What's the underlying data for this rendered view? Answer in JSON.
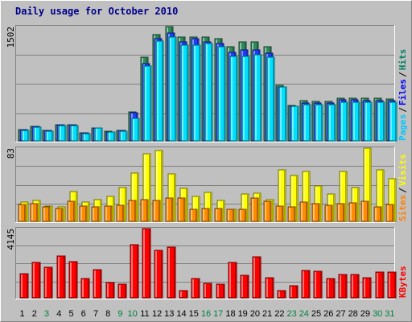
{
  "chart_data": [
    {
      "type": "bar",
      "title": "Daily usage for October 2010",
      "categories": [
        "1",
        "2",
        "3",
        "4",
        "5",
        "6",
        "7",
        "8",
        "9",
        "10",
        "11",
        "12",
        "13",
        "14",
        "15",
        "16",
        "17",
        "18",
        "19",
        "20",
        "21",
        "22",
        "23",
        "24",
        "25",
        "26",
        "27",
        "28",
        "29",
        "30",
        "31"
      ],
      "weekend_days": [
        "3",
        "9",
        "10",
        "16",
        "17",
        "23",
        "24",
        "30",
        "31"
      ],
      "ylabel_top": "1502",
      "ylim": [
        0,
        1502
      ],
      "legend": [
        "Pages",
        "Files",
        "Hits"
      ],
      "series": [
        {
          "name": "Hits",
          "color": "#2e8b57",
          "values": [
            148,
            190,
            140,
            210,
            210,
            110,
            170,
            125,
            140,
            380,
            1100,
            1400,
            1502,
            1365,
            1365,
            1365,
            1340,
            1240,
            1300,
            1300,
            1240,
            725,
            470,
            525,
            515,
            520,
            560,
            560,
            560,
            560,
            555
          ]
        },
        {
          "name": "Files",
          "color": "#1e3cff",
          "values": [
            145,
            190,
            135,
            210,
            210,
            110,
            170,
            120,
            135,
            370,
            1020,
            1340,
            1420,
            1300,
            1340,
            1300,
            1280,
            1160,
            1190,
            1190,
            1150,
            710,
            455,
            500,
            500,
            500,
            535,
            535,
            530,
            530,
            530
          ]
        },
        {
          "name": "Pages",
          "color": "#00e0ff",
          "values": [
            140,
            180,
            130,
            200,
            200,
            100,
            165,
            115,
            130,
            300,
            980,
            1310,
            1360,
            1260,
            1260,
            1280,
            1240,
            1110,
            1110,
            1130,
            1100,
            710,
            450,
            480,
            480,
            480,
            505,
            510,
            510,
            510,
            505
          ]
        }
      ]
    },
    {
      "type": "bar",
      "categories": [
        "1",
        "2",
        "3",
        "4",
        "5",
        "6",
        "7",
        "8",
        "9",
        "10",
        "11",
        "12",
        "13",
        "14",
        "15",
        "16",
        "17",
        "18",
        "19",
        "20",
        "21",
        "22",
        "23",
        "24",
        "25",
        "26",
        "27",
        "28",
        "29",
        "30",
        "31"
      ],
      "ylabel_top": "83",
      "ylim": [
        0,
        83
      ],
      "legend": [
        "Sites",
        "Visits"
      ],
      "series": [
        {
          "name": "Visits",
          "color": "#ffff00",
          "values": [
            22,
            24,
            17,
            16,
            34,
            22,
            25,
            28,
            38,
            55,
            77,
            80,
            54,
            37,
            28,
            33,
            24,
            14,
            31,
            32,
            25,
            58,
            52,
            57,
            40,
            31,
            57,
            38,
            83,
            58,
            48
          ]
        },
        {
          "name": "Sites",
          "color": "#ff8c00",
          "values": [
            19,
            20,
            16,
            15,
            23,
            17,
            16,
            17,
            18,
            24,
            25,
            24,
            26,
            26,
            14,
            15,
            15,
            14,
            14,
            26,
            23,
            17,
            16,
            22,
            20,
            18,
            20,
            21,
            23,
            16,
            19
          ]
        }
      ]
    },
    {
      "type": "bar",
      "categories": [
        "1",
        "2",
        "3",
        "4",
        "5",
        "6",
        "7",
        "8",
        "9",
        "10",
        "11",
        "12",
        "13",
        "14",
        "15",
        "16",
        "17",
        "18",
        "19",
        "20",
        "21",
        "22",
        "23",
        "24",
        "25",
        "26",
        "27",
        "28",
        "29",
        "30",
        "31"
      ],
      "ylabel_top": "4145",
      "ylim": [
        0,
        4145
      ],
      "legend": [
        "KBytes"
      ],
      "series": [
        {
          "name": "KBytes",
          "color": "#ff0000",
          "values": [
            1450,
            2130,
            1850,
            2520,
            2170,
            1160,
            1700,
            910,
            820,
            3160,
            4145,
            2850,
            3030,
            410,
            1170,
            860,
            820,
            2100,
            1340,
            2460,
            1210,
            410,
            720,
            1620,
            1610,
            1140,
            1400,
            1400,
            1210,
            1530,
            1530
          ]
        }
      ]
    }
  ],
  "colors": {
    "background": "#c0c0c0",
    "title": "#00008b",
    "day_weekday": "#000000",
    "day_weekend": "#008040"
  }
}
